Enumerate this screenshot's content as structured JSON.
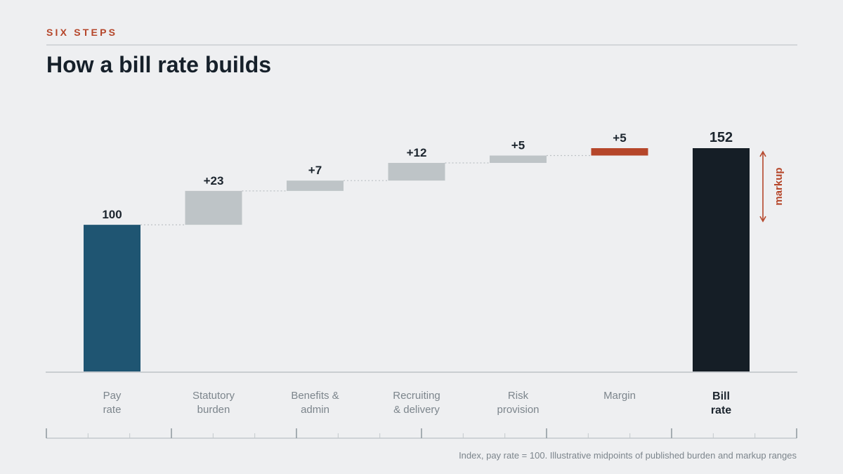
{
  "header": {
    "kicker": "SIX STEPS",
    "title": "How a bill rate builds"
  },
  "footnote": "Index, pay rate = 100. Illustrative midpoints of published burden and markup ranges",
  "annotation": {
    "label": "markup"
  },
  "colors": {
    "start": "#1f5572",
    "step": "#bec4c7",
    "highlight": "#b5462a",
    "total": "#151e26",
    "axis": "#c9cdd1",
    "text_dark": "#1c252e",
    "text_muted": "#7c858c",
    "connector": "#bcc1c5"
  },
  "chart_data": {
    "type": "waterfall",
    "categories": [
      [
        "Pay",
        "rate"
      ],
      [
        "Statutory",
        "burden"
      ],
      [
        "Benefits &",
        "admin"
      ],
      [
        "Recruiting",
        "& delivery"
      ],
      [
        "Risk",
        "provision"
      ],
      [
        "Margin"
      ],
      [
        "Bill",
        "rate"
      ]
    ],
    "steps": [
      {
        "kind": "start",
        "value": 100,
        "label": "100"
      },
      {
        "kind": "delta",
        "value": 23,
        "label": "+23"
      },
      {
        "kind": "delta",
        "value": 7,
        "label": "+7"
      },
      {
        "kind": "delta",
        "value": 12,
        "label": "+12"
      },
      {
        "kind": "delta",
        "value": 5,
        "label": "+5"
      },
      {
        "kind": "highlight",
        "value": 5,
        "label": "+5"
      },
      {
        "kind": "total",
        "value": 152,
        "label": "152"
      }
    ],
    "ylim": [
      0,
      152
    ]
  }
}
